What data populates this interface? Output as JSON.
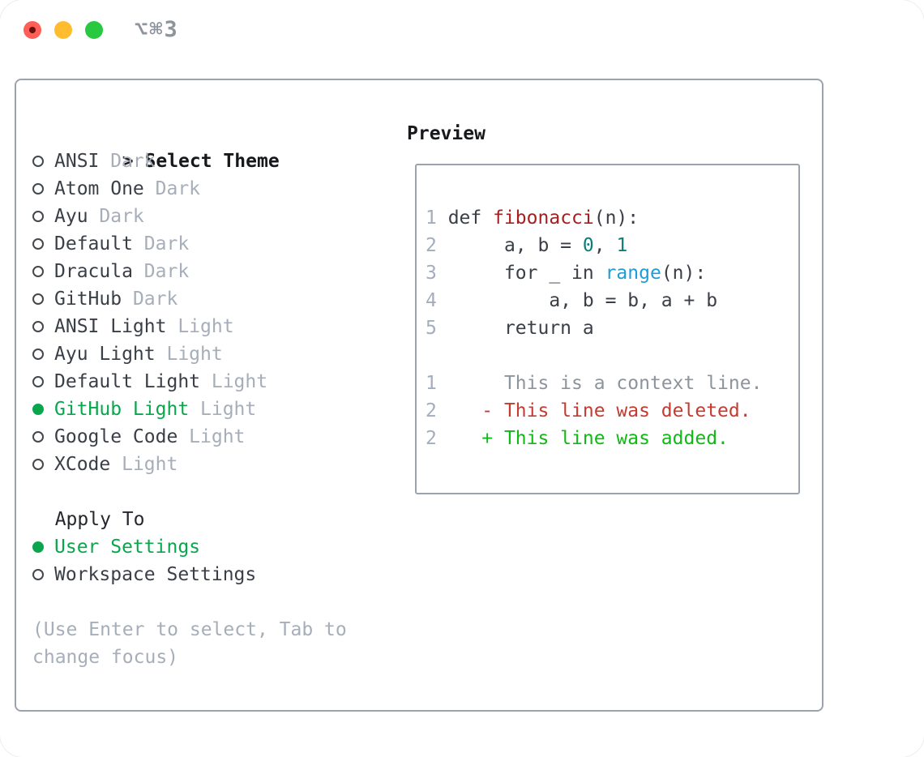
{
  "window": {
    "title": "⌥⌘3",
    "traffic_lights": [
      "close",
      "minimize",
      "zoom"
    ]
  },
  "colors": {
    "selection_green": "#0aa64d",
    "added_green": "#10b915",
    "deleted_red": "#c43b30",
    "function_red": "#a51e20",
    "number_teal": "#0d7d79",
    "builtin_blue": "#1f9cd8",
    "muted_gray": "#a6aeba",
    "border_gray": "#9ba3ae",
    "text_dark": "#3a3f47"
  },
  "theme_panel": {
    "header": {
      "prefix": ">",
      "label": "Select Theme"
    },
    "themes": [
      {
        "name": "ANSI",
        "variant": "Dark",
        "selected": false
      },
      {
        "name": "Atom One",
        "variant": "Dark",
        "selected": false
      },
      {
        "name": "Ayu",
        "variant": "Dark",
        "selected": false
      },
      {
        "name": "Default",
        "variant": "Dark",
        "selected": false
      },
      {
        "name": "Dracula",
        "variant": "Dark",
        "selected": false
      },
      {
        "name": "GitHub",
        "variant": "Dark",
        "selected": false
      },
      {
        "name": "ANSI Light",
        "variant": "Light",
        "selected": false
      },
      {
        "name": "Ayu Light",
        "variant": "Light",
        "selected": false
      },
      {
        "name": "Default Light",
        "variant": "Light",
        "selected": false
      },
      {
        "name": "GitHub Light",
        "variant": "Light",
        "selected": true
      },
      {
        "name": "Google Code",
        "variant": "Light",
        "selected": false
      },
      {
        "name": "XCode",
        "variant": "Light",
        "selected": false
      }
    ],
    "apply_to": {
      "label": "Apply To",
      "options": [
        {
          "name": "User Settings",
          "selected": true
        },
        {
          "name": "Workspace Settings",
          "selected": false
        }
      ]
    },
    "hint_lines": [
      "(Use Enter to select, Tab to",
      "change focus)"
    ]
  },
  "preview": {
    "label": "Preview",
    "lines": [
      {
        "num": "1",
        "segments": [
          {
            "t": " def ",
            "c": "fg"
          },
          {
            "t": "fibonacci",
            "c": "func"
          },
          {
            "t": "(n):",
            "c": "fg"
          }
        ]
      },
      {
        "num": "2",
        "segments": [
          {
            "t": "      a, b = ",
            "c": "fg"
          },
          {
            "t": "0",
            "c": "const"
          },
          {
            "t": ", ",
            "c": "fg"
          },
          {
            "t": "1",
            "c": "const"
          }
        ]
      },
      {
        "num": "3",
        "segments": [
          {
            "t": "      for _ in ",
            "c": "fg"
          },
          {
            "t": "range",
            "c": "builtin"
          },
          {
            "t": "(n):",
            "c": "fg"
          }
        ]
      },
      {
        "num": "4",
        "segments": [
          {
            "t": "          a, b = b, a + b",
            "c": "fg"
          }
        ]
      },
      {
        "num": "5",
        "segments": [
          {
            "t": "      return a",
            "c": "fg"
          }
        ]
      },
      {
        "num": "",
        "segments": []
      },
      {
        "num": "1",
        "segments": [
          {
            "t": "      This is a context line.",
            "c": "ctx"
          }
        ]
      },
      {
        "num": "2",
        "segments": [
          {
            "t": "    - This line was deleted.",
            "c": "del"
          }
        ]
      },
      {
        "num": "2",
        "segments": [
          {
            "t": "    + This line was added.",
            "c": "add"
          }
        ]
      }
    ]
  }
}
